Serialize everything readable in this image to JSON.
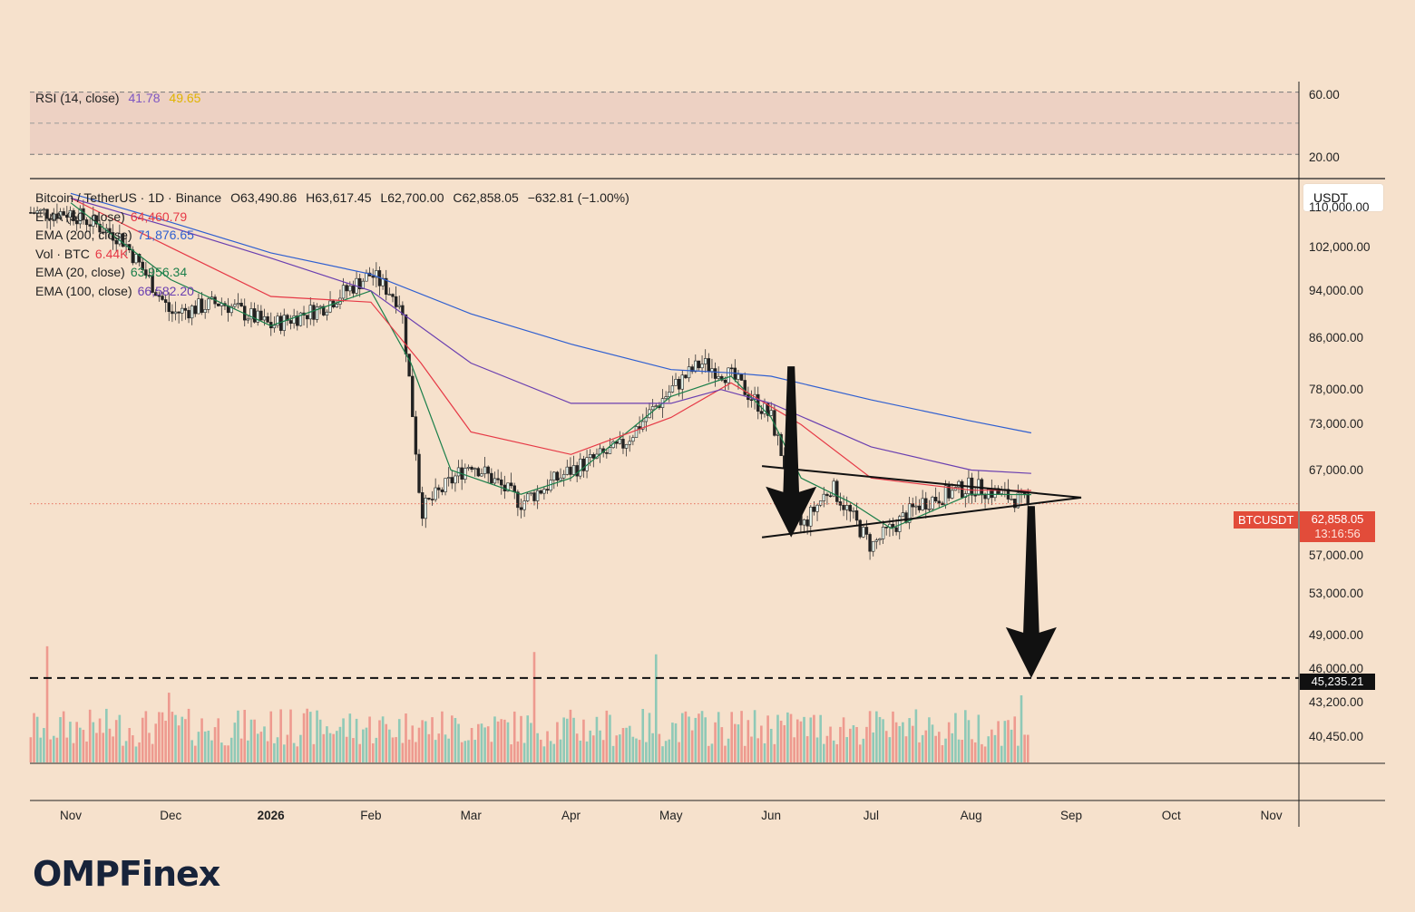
{
  "rsi": {
    "title": "RSI (14, close)",
    "value": "41.78",
    "ma_value": "49.65",
    "ticks": [
      "60.00",
      "20.00"
    ],
    "color": "#7e57c2",
    "ma_color": "#f4d03f"
  },
  "main": {
    "title": "Bitcoin / TetherUS · 1D · Binance",
    "ohlc": {
      "open": "O63,490.86",
      "high": "H63,617.45",
      "low": "L62,700.00",
      "close": "C62,858.05",
      "change": "−632.81 (−1.00%)"
    },
    "indicators": [
      {
        "label": "EMA (50, close)",
        "value": "64,460.79",
        "color": "#e63946"
      },
      {
        "label": "EMA (200, close)",
        "value": "71,876.65",
        "color": "#2f5fd0"
      },
      {
        "label": "Vol · BTC",
        "value": "6.44K",
        "color": "#e63946"
      },
      {
        "label": "EMA (20, close)",
        "value": "63,956.34",
        "color": "#1b7f4a"
      },
      {
        "label": "EMA (100, close)",
        "value": "66,582.20",
        "color": "#6a3fb0"
      }
    ]
  },
  "y_axis": {
    "currency": "USDT",
    "ticks": [
      "110,000.00",
      "102,000.00",
      "94,000.00",
      "86,000.00",
      "78,000.00",
      "73,000.00",
      "67,000.00",
      "57,000.00",
      "53,000.00",
      "49,000.00",
      "46,000.00",
      "43,200.00",
      "40,450.00"
    ],
    "symbol_tag": "BTCUSDT",
    "last_price": "62,858.05",
    "countdown": "13:16:56",
    "target_price": "45,235.21"
  },
  "x_axis": {
    "labels": [
      {
        "text": "Nov",
        "bold": false
      },
      {
        "text": "Dec",
        "bold": false
      },
      {
        "text": "2026",
        "bold": true
      },
      {
        "text": "Feb",
        "bold": false
      },
      {
        "text": "Mar",
        "bold": false
      },
      {
        "text": "Apr",
        "bold": false
      },
      {
        "text": "May",
        "bold": false
      },
      {
        "text": "Jun",
        "bold": false
      },
      {
        "text": "Jul",
        "bold": false
      },
      {
        "text": "Aug",
        "bold": false
      },
      {
        "text": "Sep",
        "bold": false
      },
      {
        "text": "Oct",
        "bold": false
      },
      {
        "text": "Nov",
        "bold": false
      }
    ]
  },
  "chart_data": {
    "type": "line",
    "x_unit": "month",
    "series": [
      {
        "name": "Bitcoin / TetherUS",
        "x": [
          0,
          0.5,
          1,
          1.5,
          2,
          2.5,
          3,
          3.3,
          3.5,
          4,
          4.5,
          5,
          5.5,
          6,
          6.3,
          6.6,
          7,
          7.3,
          7.6,
          8,
          8.5,
          9,
          9.3,
          9.6
        ],
        "y": [
          109000,
          104000,
          90000,
          92000,
          88000,
          91000,
          97000,
          92000,
          62000,
          68000,
          63000,
          67000,
          70000,
          78000,
          82000,
          80000,
          74000,
          60000,
          65000,
          58000,
          63000,
          65000,
          64000,
          62858
        ]
      },
      {
        "name": "EMA (20, close)",
        "x": [
          0,
          1,
          2,
          3,
          3.4,
          3.8,
          4.5,
          5,
          6,
          6.6,
          7,
          7.3,
          7.8,
          8.2,
          9,
          9.6
        ],
        "y": [
          111000,
          96000,
          88000,
          94000,
          82000,
          67000,
          64000,
          66000,
          77000,
          80000,
          74000,
          66000,
          63000,
          60000,
          64000,
          63956
        ]
      },
      {
        "name": "EMA (50, close)",
        "x": [
          0,
          1,
          2,
          3,
          3.5,
          4,
          5,
          6,
          6.6,
          7.3,
          8,
          9,
          9.6
        ],
        "y": [
          112000,
          102000,
          93000,
          92000,
          82000,
          72000,
          69000,
          74000,
          79000,
          73000,
          66000,
          64500,
          64460
        ]
      },
      {
        "name": "EMA (100, close)",
        "x": [
          0,
          1,
          2,
          3,
          4,
          5,
          6,
          6.5,
          7,
          8,
          9,
          9.6
        ],
        "y": [
          112000,
          106000,
          100000,
          94000,
          82000,
          76000,
          76000,
          78000,
          76000,
          70000,
          67000,
          66582
        ]
      },
      {
        "name": "EMA (200, close)",
        "x": [
          0,
          1,
          2,
          3,
          4,
          5,
          6,
          6.6,
          7,
          8,
          9,
          9.6
        ],
        "y": [
          113000,
          107000,
          101000,
          97000,
          90000,
          85000,
          81000,
          80500,
          80000,
          76500,
          73500,
          71876
        ]
      }
    ],
    "volume": {
      "name": "Vol · BTC",
      "last": "6.44K"
    },
    "annotations": {
      "triangle_upper": [
        [
          7.0,
          67500
        ],
        [
          10.1,
          63600
        ]
      ],
      "triangle_lower": [
        [
          7.0,
          59000
        ],
        [
          10.1,
          63600
        ]
      ],
      "arrow_down_1": [
        [
          7.2,
          81500
        ],
        [
          7.2,
          59000
        ]
      ],
      "arrow_down_2": [
        [
          9.6,
          62600
        ],
        [
          9.6,
          45235
        ]
      ],
      "target_line": 45235.21
    },
    "ylim": [
      38500,
      116000
    ],
    "log_scale": true,
    "rsi": {
      "value": 41.78,
      "ma": 49.65,
      "levels": [
        70,
        30
      ],
      "ylim": [
        15,
        75
      ]
    }
  },
  "branding": {
    "logo": "OMPFinex"
  }
}
